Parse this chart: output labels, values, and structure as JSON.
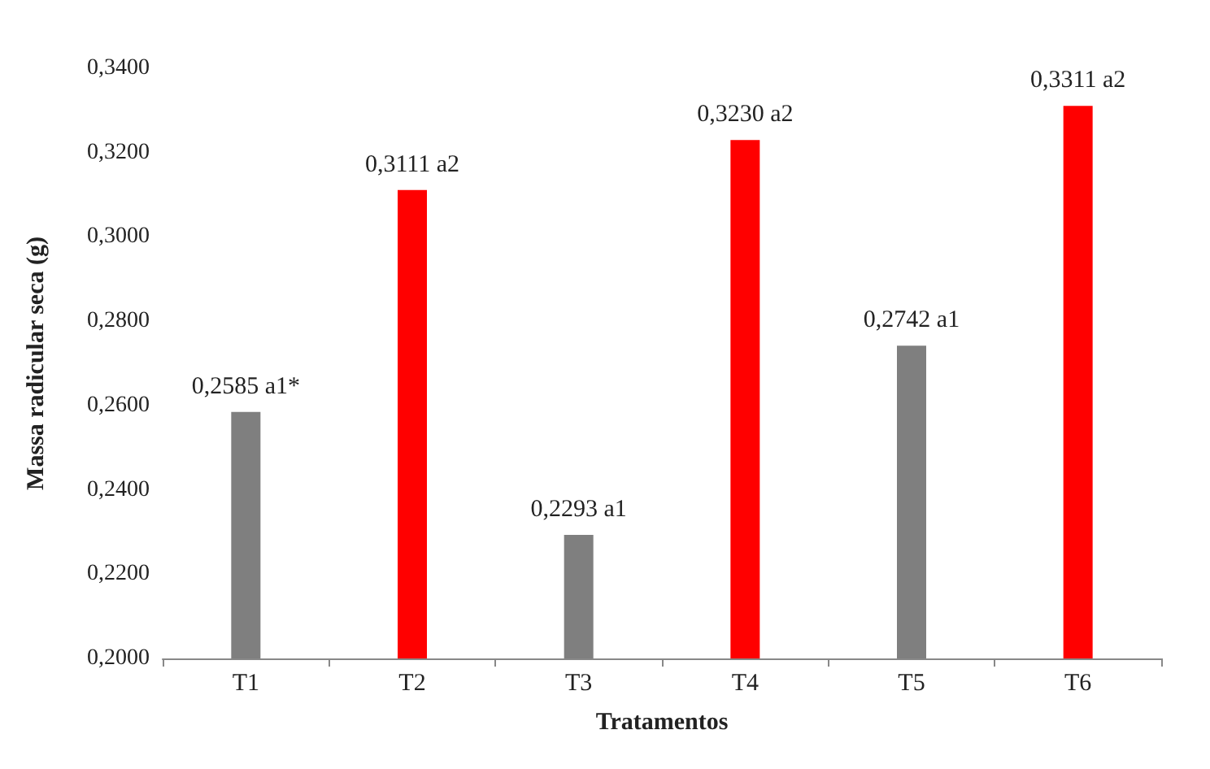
{
  "chart_data": {
    "type": "bar",
    "xlabel": "Tratamentos",
    "ylabel": "Massa radicular seca (g)",
    "categories": [
      "T1",
      "T2",
      "T3",
      "T4",
      "T5",
      "T6"
    ],
    "values": [
      0.2585,
      0.3111,
      0.2293,
      0.323,
      0.2742,
      0.3311
    ],
    "colors": [
      "#7f7f7f",
      "#ff0000",
      "#7f7f7f",
      "#ff0000",
      "#7f7f7f",
      "#ff0000"
    ],
    "value_labels": [
      "0,2585 a1*",
      "0,3111 a2",
      "0,2293 a1",
      "0,3230 a2",
      "0,2742 a1",
      "0,3311 a2"
    ],
    "ylim": [
      0.2,
      0.34
    ],
    "yticks": [
      {
        "value": 0.2,
        "label": "0,2000"
      },
      {
        "value": 0.22,
        "label": "0,2200"
      },
      {
        "value": 0.24,
        "label": "0,2400"
      },
      {
        "value": 0.26,
        "label": "0,2600"
      },
      {
        "value": 0.28,
        "label": "0,2800"
      },
      {
        "value": 0.3,
        "label": "0,3000"
      },
      {
        "value": 0.32,
        "label": "0,3200"
      },
      {
        "value": 0.34,
        "label": "0,3400"
      }
    ],
    "grid": false
  }
}
